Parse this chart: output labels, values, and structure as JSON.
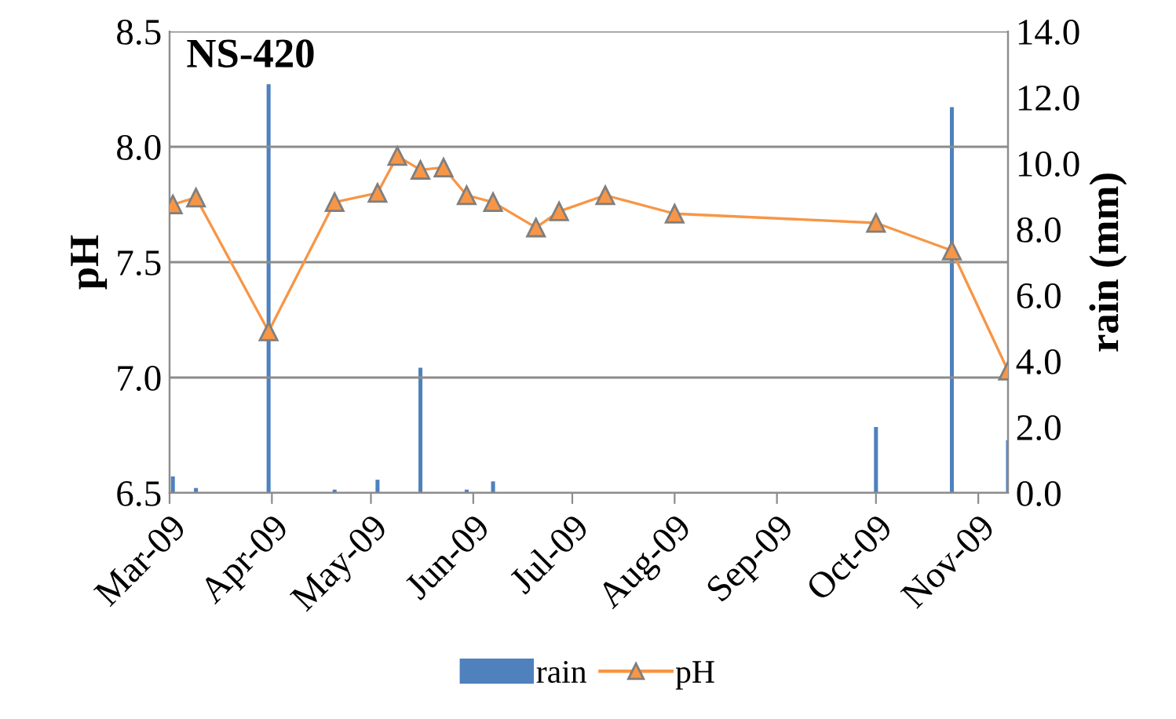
{
  "chart_data": {
    "type": "line",
    "title": "NS-420",
    "ylabel": "pH",
    "y2label": "rain (mm)",
    "x": [
      "2009-03-02",
      "2009-03-09",
      "2009-03-31",
      "2009-04-20",
      "2009-05-03",
      "2009-05-09",
      "2009-05-16",
      "2009-05-23",
      "2009-05-30",
      "2009-06-07",
      "2009-06-20",
      "2009-06-27",
      "2009-07-11",
      "2009-08-01",
      "2009-10-01",
      "2009-10-24",
      "2009-11-10"
    ],
    "series": [
      {
        "name": "rain",
        "type": "bar",
        "axis": "y2",
        "color": "#4f81bd",
        "values": [
          0.5,
          0.15,
          12.4,
          0.1,
          0.4,
          null,
          3.8,
          null,
          0.1,
          0.35,
          null,
          null,
          null,
          null,
          2.0,
          11.7,
          1.6
        ]
      },
      {
        "name": "pH",
        "color": "#f79646",
        "marker": "triangle",
        "values": [
          7.75,
          7.78,
          7.2,
          7.76,
          7.8,
          7.96,
          7.9,
          7.91,
          7.79,
          7.76,
          7.65,
          7.72,
          7.79,
          7.71,
          7.67,
          7.55,
          7.03
        ]
      }
    ],
    "xlim": [
      "2009-03-01",
      "2009-11-10"
    ],
    "xticks": [
      {
        "value": "2009-03-01",
        "label": "Mar-09"
      },
      {
        "value": "2009-04-01",
        "label": "Apr-09"
      },
      {
        "value": "2009-05-01",
        "label": "May-09"
      },
      {
        "value": "2009-06-01",
        "label": "Jun-09"
      },
      {
        "value": "2009-07-01",
        "label": "Jul-09"
      },
      {
        "value": "2009-08-01",
        "label": "Aug-09"
      },
      {
        "value": "2009-09-01",
        "label": "Sep-09"
      },
      {
        "value": "2009-10-01",
        "label": "Oct-09"
      },
      {
        "value": "2009-11-01",
        "label": "Nov-09"
      }
    ],
    "ylim": [
      6.5,
      8.5
    ],
    "yticks": [
      {
        "value": 6.5,
        "label": "6.5"
      },
      {
        "value": 7.0,
        "label": "7.0"
      },
      {
        "value": 7.5,
        "label": "7.5"
      },
      {
        "value": 8.0,
        "label": "8.0"
      },
      {
        "value": 8.5,
        "label": "8.5"
      }
    ],
    "y2lim": [
      0,
      14
    ],
    "y2ticks": [
      {
        "value": 0,
        "label": "0.0"
      },
      {
        "value": 2,
        "label": "2.0"
      },
      {
        "value": 4,
        "label": "4.0"
      },
      {
        "value": 6,
        "label": "6.0"
      },
      {
        "value": 8,
        "label": "8.0"
      },
      {
        "value": 10,
        "label": "10.0"
      },
      {
        "value": 12,
        "label": "12.0"
      },
      {
        "value": 14,
        "label": "14.0"
      }
    ],
    "grid": "y",
    "legend": "bottom"
  }
}
